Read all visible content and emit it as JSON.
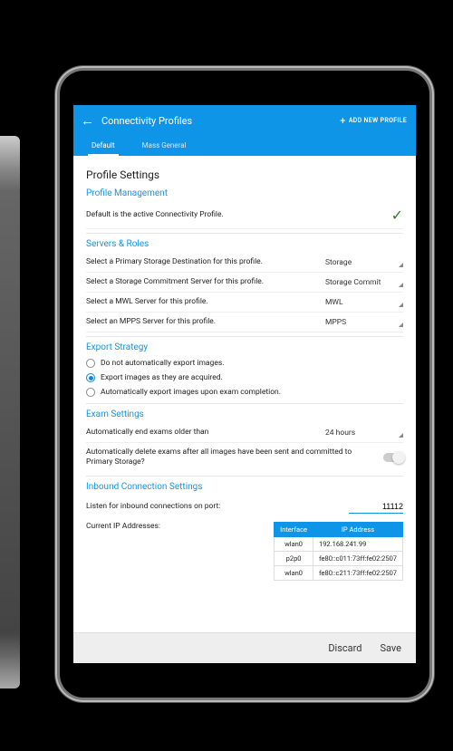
{
  "colors": {
    "primary": "#0f95e8",
    "success": "#2e7d32",
    "bg": "#ffffff",
    "footer_bg": "#eeeeee",
    "text": "#212121",
    "divider": "#e6e6e6"
  },
  "header": {
    "title": "Connectivity Profiles",
    "add_new": "ADD NEW PROFILE"
  },
  "tabs": [
    {
      "label": "Default",
      "active": true
    },
    {
      "label": "Mass General",
      "active": false
    }
  ],
  "page_title": "Profile Settings",
  "profile_management": {
    "heading": "Profile Management",
    "status_text": "Default is the active Connectivity Profile.",
    "active": true
  },
  "servers_roles": {
    "heading": "Servers & Roles",
    "rows": [
      {
        "label": "Select a Primary Storage Destination for this profile.",
        "value": "Storage"
      },
      {
        "label": "Select a Storage Commitment Server for this profile.",
        "value": "Storage Commit"
      },
      {
        "label": "Select a MWL Server for this profile.",
        "value": "MWL"
      },
      {
        "label": "Select an MPPS Server for this profile.",
        "value": "MPPS"
      }
    ]
  },
  "export_strategy": {
    "heading": "Export Strategy",
    "options": [
      {
        "label": "Do not automatically export images.",
        "selected": false
      },
      {
        "label": "Export images as they are acquired.",
        "selected": true
      },
      {
        "label": "Automatically export images upon exam completion.",
        "selected": false
      }
    ]
  },
  "exam_settings": {
    "heading": "Exam Settings",
    "auto_end_label": "Automatically end exams older than",
    "auto_end_value": "24 hours",
    "auto_delete_label": "Automatically delete exams after all images have been sent and committed to Primary Storage?",
    "auto_delete_on": false
  },
  "inbound": {
    "heading": "Inbound Connection Settings",
    "port_label": "Listen for inbound connections on port:",
    "port_value": "11112",
    "ip_label": "Current IP Addresses:",
    "table": {
      "columns": [
        "Interface",
        "IP Address"
      ],
      "rows": [
        [
          "wlan0",
          "192.168.241.99"
        ],
        [
          "p2p0",
          "fe80::c011:73ff:fe02:2507"
        ],
        [
          "wlan0",
          "fe80::c211:73ff:fe02:2507"
        ]
      ]
    }
  },
  "footer": {
    "discard": "Discard",
    "save": "Save"
  }
}
